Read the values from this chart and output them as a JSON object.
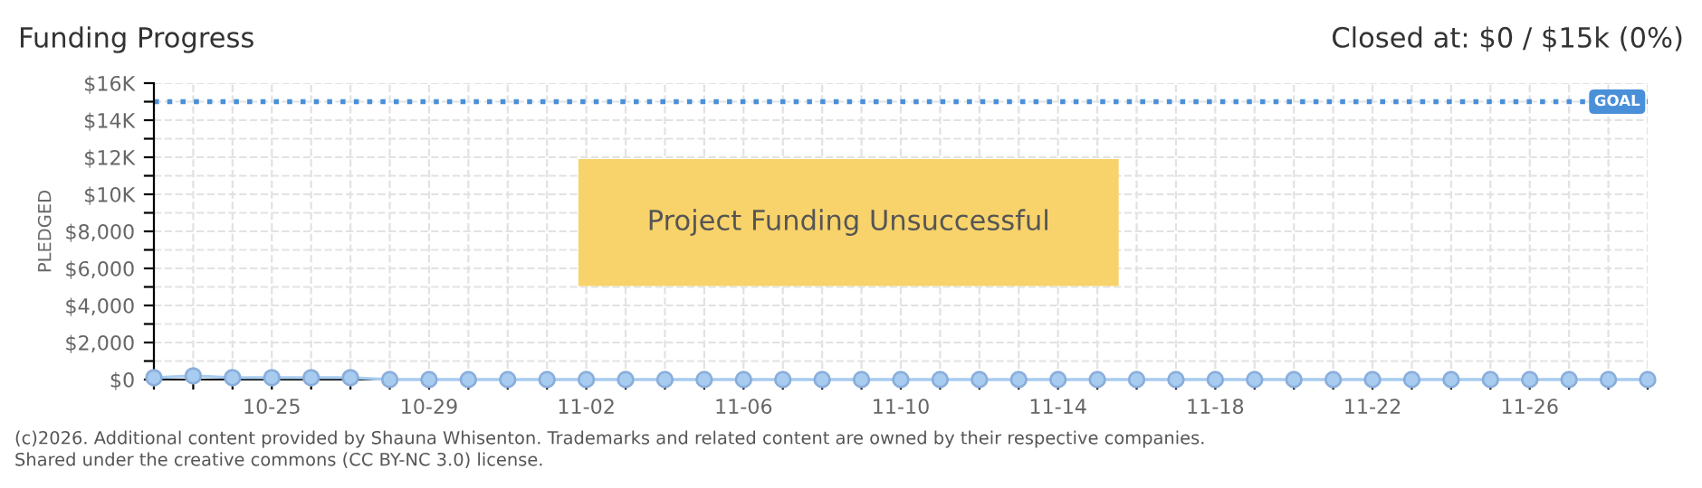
{
  "chart_data": {
    "type": "line",
    "title": "Funding Progress",
    "ylabel": "PLEDGED",
    "categories": [
      null,
      null,
      null,
      "10-25",
      null,
      null,
      null,
      "10-29",
      null,
      null,
      null,
      "11-02",
      null,
      null,
      null,
      "11-06",
      null,
      null,
      null,
      "11-10",
      null,
      null,
      null,
      "11-14",
      null,
      null,
      null,
      "11-18",
      null,
      null,
      null,
      "11-22",
      null,
      null,
      null,
      "11-26",
      null,
      null,
      null
    ],
    "series": [
      {
        "color": "#a8ccf0",
        "values": [
          100,
          200,
          100,
          100,
          100,
          100,
          0,
          0,
          0,
          0,
          0,
          0,
          0,
          0,
          0,
          0,
          0,
          0,
          0,
          0,
          0,
          0,
          0,
          0,
          0,
          0,
          0,
          0,
          0,
          0,
          0,
          0,
          0,
          0,
          0,
          0,
          0,
          0,
          0
        ]
      }
    ],
    "marker": "circle",
    "ylim": [
      0,
      16000
    ],
    "yticks": [
      {
        "value": 0,
        "label": "$0"
      },
      {
        "value": 1000,
        "label": null
      },
      {
        "value": 2000,
        "label": "$2,000"
      },
      {
        "value": 3000,
        "label": null
      },
      {
        "value": 4000,
        "label": "$4,000"
      },
      {
        "value": 5000,
        "label": null
      },
      {
        "value": 6000,
        "label": "$6,000"
      },
      {
        "value": 7000,
        "label": null
      },
      {
        "value": 8000,
        "label": "$8,000"
      },
      {
        "value": 9000,
        "label": null
      },
      {
        "value": 10000,
        "label": "$10K"
      },
      {
        "value": 11000,
        "label": null
      },
      {
        "value": 12000,
        "label": "$12K"
      },
      {
        "value": 13000,
        "label": null
      },
      {
        "value": 14000,
        "label": "$14K"
      },
      {
        "value": 15000,
        "label": null
      },
      {
        "value": 16000,
        "label": "$16K"
      }
    ],
    "ref_lines": [
      {
        "axis": "y",
        "value": 15000,
        "label": "GOAL",
        "color": "#4a90d9",
        "line_style": "dotted"
      }
    ],
    "grid": true,
    "annotations": [
      "Closed at: $0 / $15k (0%)",
      "Project Funding Unsuccessful",
      "(c)2026. Additional content provided by Shauna Whisenton. Trademarks and related content are owned by their respective companies.",
      "Shared under the creative commons (CC BY-NC 3.0) license."
    ]
  }
}
